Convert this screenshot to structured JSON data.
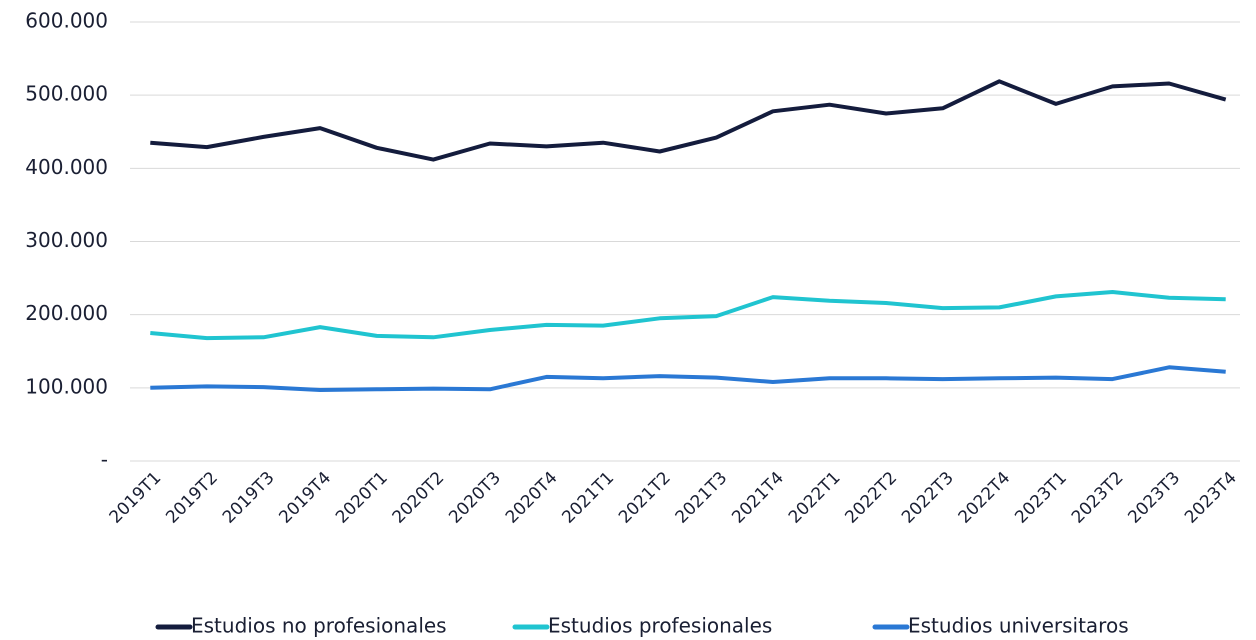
{
  "chart_data": {
    "type": "line",
    "categories": [
      "2019T1",
      "2019T2",
      "2019T3",
      "2019T4",
      "2020T1",
      "2020T2",
      "2020T3",
      "2020T4",
      "2021T1",
      "2021T2",
      "2021T3",
      "2021T4",
      "2022T1",
      "2022T2",
      "2022T3",
      "2022T4",
      "2023T1",
      "2023T2",
      "2023T3",
      "2023T4"
    ],
    "series": [
      {
        "name": "Estudios no profesionales",
        "color": "#141c3d",
        "values": [
          435000,
          429000,
          443000,
          455000,
          428000,
          412000,
          434000,
          430000,
          435000,
          423000,
          442000,
          478000,
          487000,
          475000,
          482000,
          519000,
          488000,
          512000,
          516000,
          494000
        ]
      },
      {
        "name": "Estudios profesionales",
        "color": "#20c4d0",
        "values": [
          175000,
          168000,
          169000,
          183000,
          171000,
          169000,
          179000,
          186000,
          185000,
          195000,
          198000,
          224000,
          219000,
          216000,
          209000,
          210000,
          225000,
          231000,
          223000,
          221000
        ]
      },
      {
        "name": "Estudios universitaros",
        "color": "#2a78d4",
        "values": [
          100000,
          102000,
          101000,
          97000,
          98000,
          99000,
          98000,
          115000,
          113000,
          116000,
          114000,
          108000,
          113000,
          113000,
          112000,
          113000,
          114000,
          112000,
          128000,
          122000
        ]
      }
    ],
    "ylim": [
      0,
      600000
    ],
    "yticks": [
      {
        "value": 0,
        "label": "-"
      },
      {
        "value": 100000,
        "label": "100.000"
      },
      {
        "value": 200000,
        "label": "200.000"
      },
      {
        "value": 300000,
        "label": "300.000"
      },
      {
        "value": 400000,
        "label": "400.000"
      },
      {
        "value": 500000,
        "label": "500.000"
      },
      {
        "value": 600000,
        "label": "600.000"
      }
    ],
    "grid": true
  }
}
